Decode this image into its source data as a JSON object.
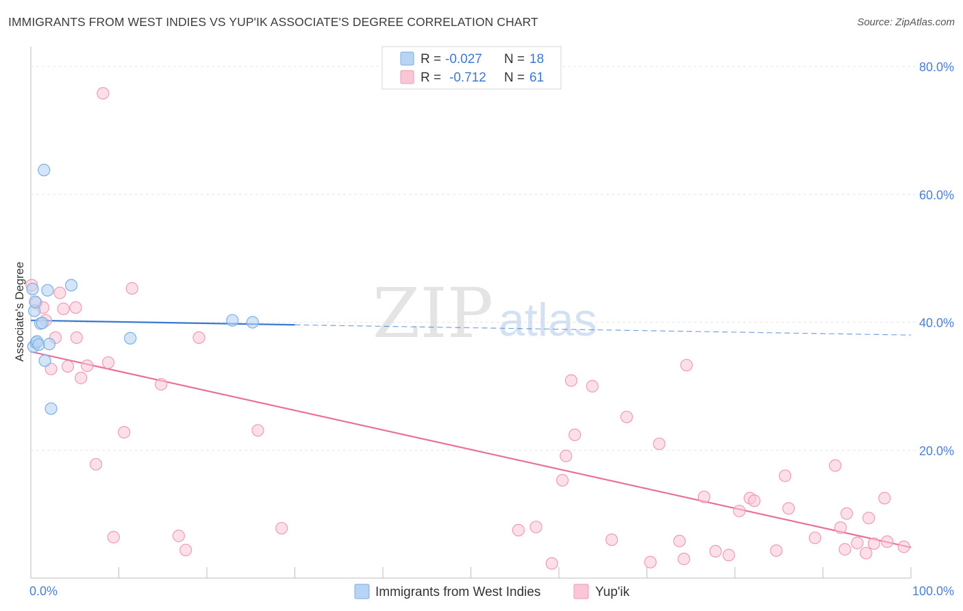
{
  "title": "IMMIGRANTS FROM WEST INDIES VS YUP'IK ASSOCIATE'S DEGREE CORRELATION CHART",
  "source": "Source: ZipAtlas.com",
  "watermark": {
    "zip": "ZIP",
    "atlas": "atlas"
  },
  "legend_top": [
    {
      "r_label": "R =",
      "r_value": "-0.027",
      "n_label": "N =",
      "n_value": "18"
    },
    {
      "r_label": "R =",
      "r_value": "-0.712",
      "n_label": "N =",
      "n_value": "61"
    }
  ],
  "legend_bottom": [
    "Immigrants from West Indies",
    "Yup'ik"
  ],
  "colors": {
    "blue_fill": "#b8d4f4",
    "blue_stroke": "#7aaee3",
    "blue_line": "#3a78d0",
    "pink_fill": "#f9c6d6",
    "pink_stroke": "#ee9ab6",
    "pink_line": "#e8709a",
    "tick_label": "#4a7fd0",
    "grid": "#e6e6e6"
  },
  "chart_data": {
    "type": "scatter",
    "title": "IMMIGRANTS FROM WEST INDIES VS YUP'IK ASSOCIATE'S DEGREE CORRELATION CHART",
    "xlabel": "",
    "ylabel": "Associate's Degree",
    "xlim": [
      0,
      100
    ],
    "ylim": [
      0,
      80
    ],
    "x_tick_labels": [
      "0.0%",
      "100.0%"
    ],
    "y_ticks": [
      20,
      40,
      60,
      80
    ],
    "y_tick_labels": [
      "20.0%",
      "40.0%",
      "60.0%",
      "80.0%"
    ],
    "grid": true,
    "series": [
      {
        "name": "Immigrants from West Indies",
        "r": -0.027,
        "n": 18,
        "points": [
          [
            0.2,
            45.2
          ],
          [
            0.3,
            36.2
          ],
          [
            0.4,
            41.8
          ],
          [
            0.5,
            43.2
          ],
          [
            0.6,
            36.8
          ],
          [
            0.7,
            37.0
          ],
          [
            0.9,
            36.5
          ],
          [
            1.1,
            39.8
          ],
          [
            1.3,
            39.9
          ],
          [
            1.5,
            63.8
          ],
          [
            1.6,
            34.0
          ],
          [
            1.9,
            45.0
          ],
          [
            2.1,
            36.6
          ],
          [
            2.3,
            26.5
          ],
          [
            4.6,
            45.8
          ],
          [
            11.3,
            37.5
          ],
          [
            22.9,
            40.3
          ],
          [
            25.2,
            40.0
          ]
        ],
        "trend": {
          "x": [
            0,
            30
          ],
          "y": [
            40.3,
            39.6
          ],
          "dashed_to": [
            100,
            38.0
          ]
        }
      },
      {
        "name": "Yup'ik",
        "r": -0.712,
        "n": 61,
        "points": [
          [
            0.1,
            45.8
          ],
          [
            0.6,
            43.0
          ],
          [
            1.4,
            42.3
          ],
          [
            1.7,
            40.3
          ],
          [
            2.3,
            32.7
          ],
          [
            2.8,
            37.6
          ],
          [
            3.3,
            44.6
          ],
          [
            3.7,
            42.1
          ],
          [
            4.2,
            33.1
          ],
          [
            5.1,
            42.3
          ],
          [
            5.2,
            37.6
          ],
          [
            5.7,
            31.3
          ],
          [
            6.4,
            33.2
          ],
          [
            7.4,
            17.8
          ],
          [
            8.2,
            75.8
          ],
          [
            8.8,
            33.7
          ],
          [
            9.4,
            6.4
          ],
          [
            10.6,
            22.8
          ],
          [
            11.5,
            45.3
          ],
          [
            14.8,
            30.3
          ],
          [
            16.8,
            6.6
          ],
          [
            17.6,
            4.4
          ],
          [
            19.1,
            37.6
          ],
          [
            25.8,
            23.1
          ],
          [
            28.5,
            7.8
          ],
          [
            55.4,
            7.5
          ],
          [
            57.4,
            8.0
          ],
          [
            59.2,
            2.3
          ],
          [
            60.4,
            15.3
          ],
          [
            60.8,
            19.1
          ],
          [
            61.4,
            30.9
          ],
          [
            61.8,
            22.4
          ],
          [
            63.8,
            30.0
          ],
          [
            66.0,
            6.0
          ],
          [
            67.7,
            25.2
          ],
          [
            70.4,
            2.5
          ],
          [
            71.4,
            21.0
          ],
          [
            73.7,
            5.8
          ],
          [
            74.2,
            3.0
          ],
          [
            74.5,
            33.3
          ],
          [
            76.5,
            12.7
          ],
          [
            77.8,
            4.2
          ],
          [
            79.3,
            3.6
          ],
          [
            80.5,
            10.5
          ],
          [
            81.7,
            12.5
          ],
          [
            82.2,
            12.1
          ],
          [
            84.7,
            4.3
          ],
          [
            85.7,
            16.0
          ],
          [
            86.1,
            10.9
          ],
          [
            89.1,
            6.3
          ],
          [
            91.4,
            17.6
          ],
          [
            92.0,
            7.9
          ],
          [
            92.5,
            4.5
          ],
          [
            92.7,
            10.1
          ],
          [
            93.9,
            5.5
          ],
          [
            94.9,
            3.9
          ],
          [
            95.2,
            9.4
          ],
          [
            95.8,
            5.4
          ],
          [
            97.0,
            12.5
          ],
          [
            97.3,
            5.7
          ],
          [
            99.2,
            4.9
          ]
        ],
        "trend": {
          "x": [
            0,
            100
          ],
          "y": [
            35.4,
            4.8
          ]
        }
      }
    ]
  }
}
